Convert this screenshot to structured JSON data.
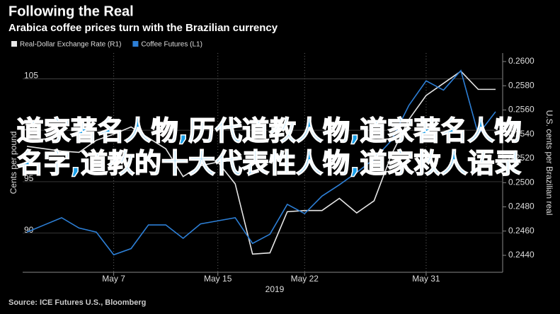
{
  "chart_data": {
    "type": "line",
    "title": "Following the Real",
    "subtitle": "Arabica coffee prices turn with the Brazilian currency",
    "source": "Source: ICE Futures U.S., Bloomberg",
    "overlay_text": "道家著名人物,历代道教人物,道家著名人物名字,道教的十大代表性人物,道家救人语录",
    "ylabel": "Cents per pound",
    "y2label": "U.S. cents per Brazilian real",
    "year_label": "2019",
    "categories": [
      null,
      null,
      null,
      null,
      null,
      "May 7",
      null,
      null,
      null,
      null,
      null,
      "May 15",
      null,
      null,
      null,
      null,
      "May 22",
      null,
      null,
      null,
      null,
      null,
      null,
      "May 31",
      null,
      null,
      null,
      null
    ],
    "series": [
      {
        "name": "Real-Dollar Exchange Rate (R1)",
        "color": "#e6e6e6",
        "axis": "y2",
        "values": [
          0.253,
          0.2528,
          0.2526,
          0.2525,
          0.2535,
          0.254,
          0.2546,
          0.2537,
          0.2528,
          0.2505,
          0.2514,
          0.2517,
          0.2499,
          0.2441,
          0.2442,
          0.2476,
          0.2477,
          0.2477,
          0.2487,
          0.2475,
          0.2485,
          0.2523,
          0.2552,
          0.2572,
          0.2582,
          0.2592,
          0.2577,
          0.2577
        ]
      },
      {
        "name": "Coffee Futures (L1)",
        "color": "#2d7fd6",
        "axis": "y",
        "values": [
          90.1,
          90.8,
          91.5,
          90.5,
          90.1,
          87.9,
          88.5,
          90.8,
          90.8,
          89.5,
          90.9,
          91.2,
          91.5,
          89.0,
          89.9,
          92.8,
          91.9,
          93.6,
          94.7,
          95.9,
          97.2,
          99.0,
          102.4,
          104.8,
          103.9,
          105.8,
          99.6,
          101.8
        ]
      }
    ],
    "ylim": [
      86.2,
      107.5
    ],
    "yticks": [
      90,
      95,
      100,
      105
    ],
    "y2lim": [
      0.2426,
      0.2607
    ],
    "y2ticks": [
      {
        "value": 0.244,
        "label": "0.2440"
      },
      {
        "value": 0.246,
        "label": "0.2460"
      },
      {
        "value": 0.248,
        "label": "0.2480"
      },
      {
        "value": 0.25,
        "label": "0.2500"
      },
      {
        "value": 0.252,
        "label": "0.2520"
      },
      {
        "value": 0.254,
        "label": "0.2540"
      },
      {
        "value": 0.256,
        "label": "0.2560"
      },
      {
        "value": 0.258,
        "label": "0.2580"
      },
      {
        "value": 0.26,
        "label": "0.2600"
      }
    ],
    "grid": true
  }
}
